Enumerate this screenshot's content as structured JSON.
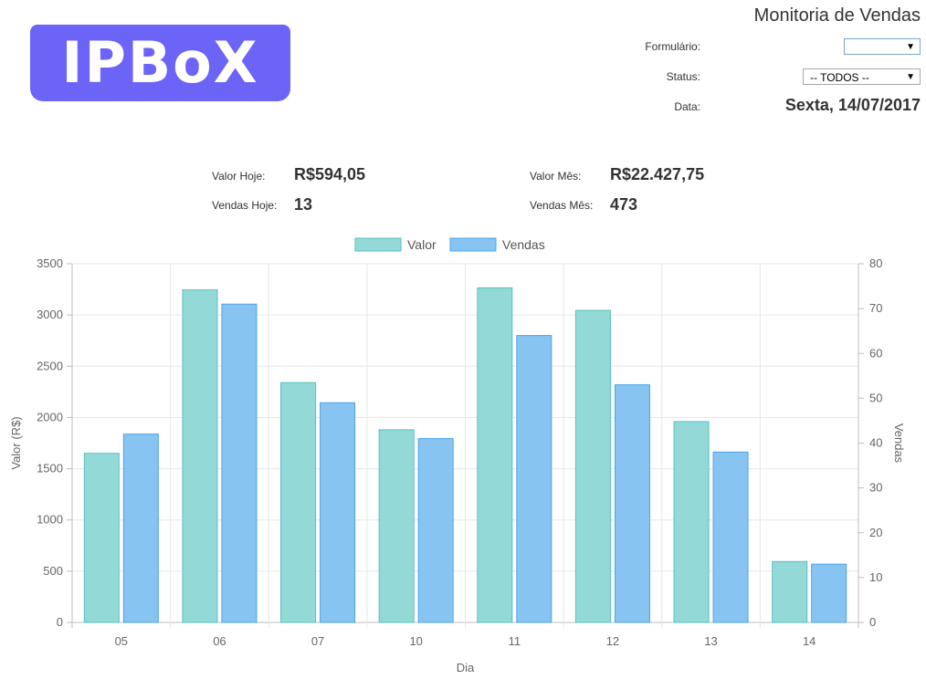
{
  "header": {
    "logo_text": "IPBoX",
    "title": "Monitoria de Vendas",
    "form_label": "Formulário:",
    "form_value": "",
    "status_label": "Status:",
    "status_value": "-- TODOS --",
    "date_label": "Data:",
    "date_value": "Sexta, 14/07/2017",
    "logo_color": "#6c63f7"
  },
  "stats": {
    "valor_hoje_label": "Valor Hoje:",
    "valor_hoje": "R$594,05",
    "vendas_hoje_label": "Vendas Hoje:",
    "vendas_hoje": "13",
    "valor_mes_label": "Valor Mês:",
    "valor_mes": "R$22.427,75",
    "vendas_mes_label": "Vendas Mês:",
    "vendas_mes": "473"
  },
  "chart_data": {
    "type": "bar",
    "categories": [
      "05",
      "06",
      "07",
      "10",
      "11",
      "12",
      "13",
      "14"
    ],
    "series": [
      {
        "name": "Valor",
        "axis": "left",
        "values": [
          1650,
          3245,
          2340,
          1880,
          3265,
          3045,
          1960,
          594.05
        ],
        "color": "#92d9d8",
        "border": "#5bbfbf"
      },
      {
        "name": "Vendas",
        "axis": "right",
        "values": [
          42,
          71,
          49,
          41,
          64,
          53,
          38,
          13
        ],
        "color": "#88c4f2",
        "border": "#4da3e6"
      }
    ],
    "xlabel": "Dia",
    "ylabel_left": "Valor (R$)",
    "ylabel_right": "Vendas",
    "ylim_left": [
      0,
      3500
    ],
    "ylim_right": [
      0,
      80
    ],
    "yticks_left": [
      0,
      500,
      1000,
      1500,
      2000,
      2500,
      3000,
      3500
    ],
    "yticks_right": [
      0,
      10,
      20,
      30,
      40,
      50,
      60,
      70,
      80
    ],
    "grid": true,
    "legend_position": "top"
  }
}
